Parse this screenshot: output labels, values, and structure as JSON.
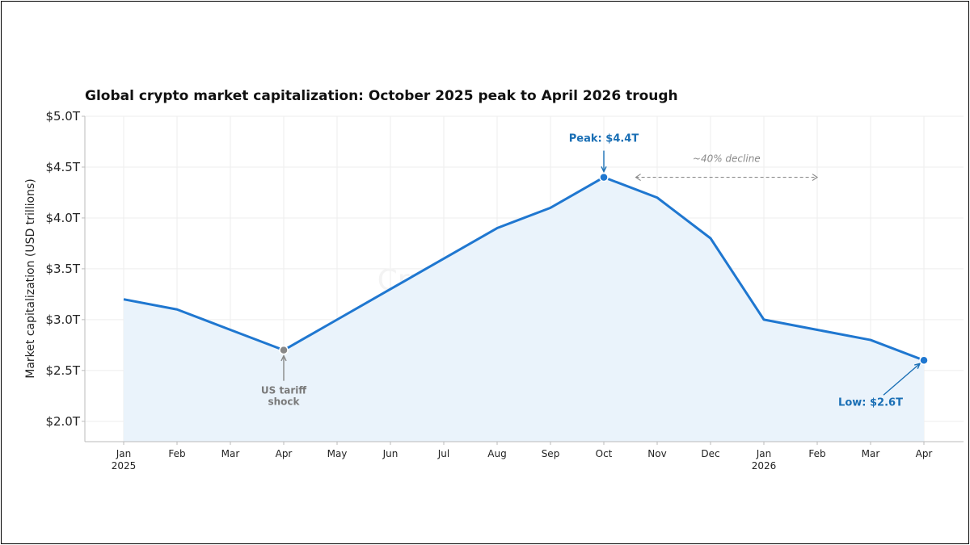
{
  "colors": {
    "line": "#1f77d0",
    "fill": "#eaf3fb",
    "event_marker": "#888888",
    "annotation_blue": "#1a6fb5",
    "annotation_gray": "#8a8a8a",
    "grid": "#eeeeee"
  },
  "chart_data": {
    "type": "area",
    "title": "Global crypto market capitalization: October 2025 peak to April 2026 trough",
    "ylabel": "Market capitalization (USD trillions)",
    "xlabel": "",
    "ylim": [
      1.8,
      5.0
    ],
    "yticks": [
      {
        "value": 2.0,
        "label": "$2.0T"
      },
      {
        "value": 2.5,
        "label": "$2.5T"
      },
      {
        "value": 3.0,
        "label": "$3.0T"
      },
      {
        "value": 3.5,
        "label": "$3.5T"
      },
      {
        "value": 4.0,
        "label": "$4.0T"
      },
      {
        "value": 4.5,
        "label": "$4.5T"
      },
      {
        "value": 5.0,
        "label": "$5.0T"
      }
    ],
    "grid": true,
    "categories": [
      {
        "month": "Jan",
        "year": "2025"
      },
      {
        "month": "Feb",
        "year": ""
      },
      {
        "month": "Mar",
        "year": ""
      },
      {
        "month": "Apr",
        "year": ""
      },
      {
        "month": "May",
        "year": ""
      },
      {
        "month": "Jun",
        "year": ""
      },
      {
        "month": "Jul",
        "year": ""
      },
      {
        "month": "Aug",
        "year": ""
      },
      {
        "month": "Sep",
        "year": ""
      },
      {
        "month": "Oct",
        "year": ""
      },
      {
        "month": "Nov",
        "year": ""
      },
      {
        "month": "Dec",
        "year": ""
      },
      {
        "month": "Jan",
        "year": "2026"
      },
      {
        "month": "Feb",
        "year": ""
      },
      {
        "month": "Mar",
        "year": ""
      },
      {
        "month": "Apr",
        "year": ""
      }
    ],
    "values": [
      3.2,
      3.1,
      2.9,
      2.7,
      3.0,
      3.3,
      3.6,
      3.9,
      4.1,
      4.4,
      4.2,
      3.8,
      3.0,
      2.9,
      2.8,
      2.6
    ],
    "annotations": {
      "event": {
        "index": 3,
        "lines": [
          "US tariff",
          "shock"
        ]
      },
      "peak": {
        "index": 9,
        "text": "Peak: $4.4T"
      },
      "low": {
        "index": 15,
        "text": "Low: $2.6T"
      },
      "decline": {
        "text": "~40% decline",
        "from_index": 9.6,
        "to_index": 13,
        "value": 4.4
      }
    },
    "watermark": "CryptoTimes.io"
  }
}
